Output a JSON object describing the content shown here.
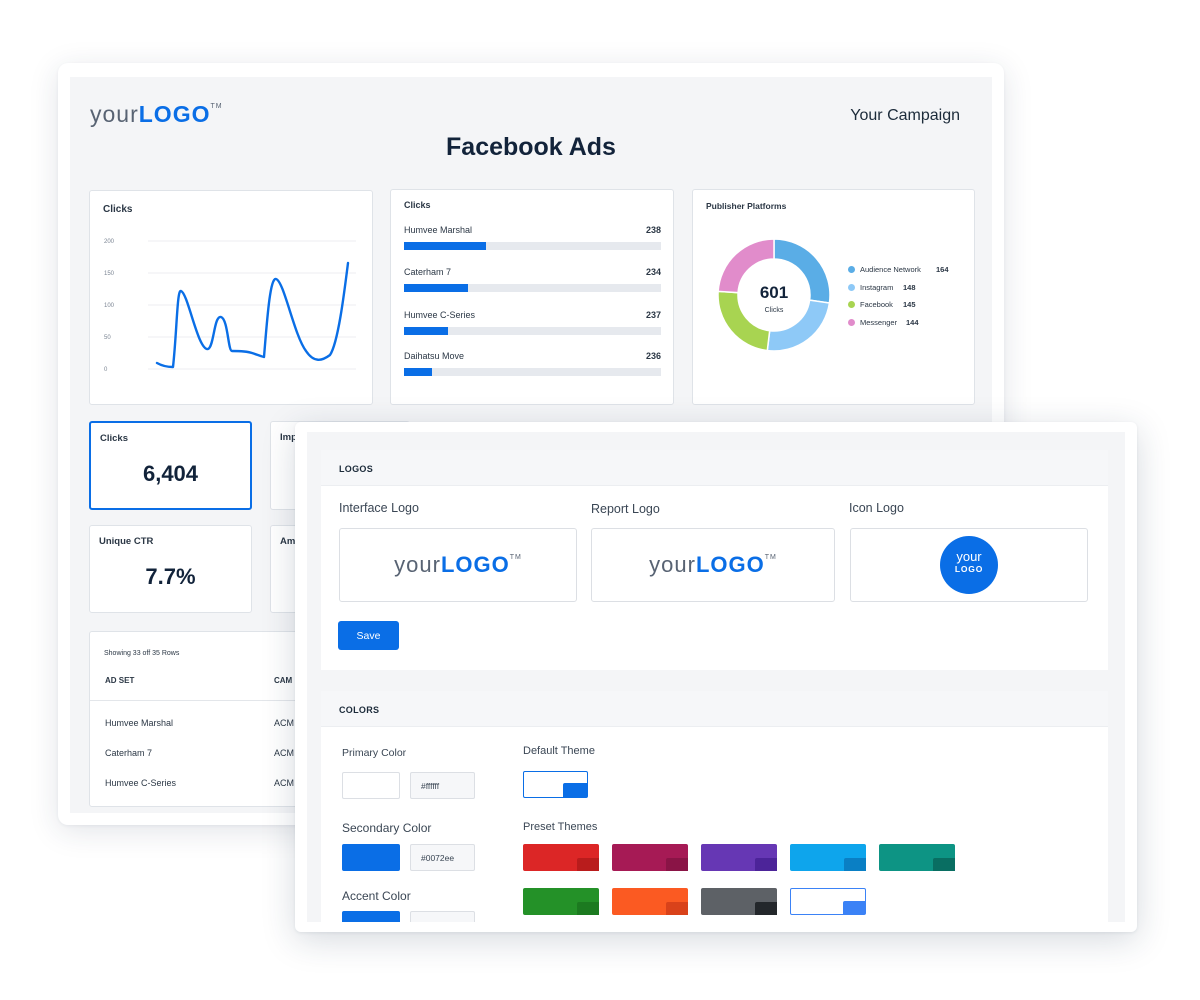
{
  "report": {
    "logo": {
      "light": "your",
      "bold": "LOGO",
      "tm": "TM"
    },
    "campaign": "Your Campaign",
    "title": "Facebook Ads",
    "line_chart": {
      "title": "Clicks",
      "y_ticks": [
        "200",
        "150",
        "100",
        "50",
        "0"
      ],
      "color": "#0a6ee6"
    },
    "bar_list": {
      "title": "Clicks",
      "items": [
        {
          "label": "Humvee Marshal",
          "value": "238",
          "fill": 0.32
        },
        {
          "label": "Caterham 7",
          "value": "234",
          "fill": 0.25
        },
        {
          "label": "Humvee C-Series",
          "value": "237",
          "fill": 0.17
        },
        {
          "label": "Daihatsu Move",
          "value": "236",
          "fill": 0.11
        }
      ]
    },
    "donut": {
      "title": "Publisher Platforms",
      "total": "601",
      "total_label": "Clicks",
      "segments": [
        {
          "name": "Audience Network",
          "value": 164,
          "color": "#5aade6"
        },
        {
          "name": "Instagram",
          "value": 148,
          "color": "#8ec9f7"
        },
        {
          "name": "Facebook",
          "value": 145,
          "color": "#a8d451"
        },
        {
          "name": "Messenger",
          "value": 144,
          "color": "#e18ccb"
        }
      ]
    },
    "kpis": {
      "clicks": {
        "label": "Clicks",
        "value": "6,404"
      },
      "impressions": {
        "label": "Imp"
      },
      "unique_ctr": {
        "label": "Unique CTR",
        "value": "7.7%"
      },
      "amount": {
        "label": "Am"
      }
    },
    "table": {
      "note": "Showing 33 off 35 Rows",
      "headers": [
        "AD SET",
        "CAM"
      ],
      "rows": [
        [
          "Humvee Marshal",
          "ACM"
        ],
        [
          "Caterham 7",
          "ACM"
        ],
        [
          "Humvee C-Series",
          "ACM"
        ]
      ]
    }
  },
  "settings": {
    "logos": {
      "title": "LOGOS",
      "interface_label": "Interface Logo",
      "report_label": "Report Logo",
      "icon_label": "Icon Logo",
      "icon_line1": "your",
      "icon_line2": "LOGO",
      "save": "Save"
    },
    "colors": {
      "title": "COLORS",
      "primary_label": "Primary Color",
      "primary_value": "#ffffff",
      "secondary_label": "Secondary Color",
      "secondary_value": "#0072ee",
      "accent_label": "Accent Color",
      "default_theme_label": "Default Theme",
      "preset_label": "Preset Themes",
      "preset_themes": [
        {
          "main": "#dc2626",
          "corner": "#b91c1c"
        },
        {
          "main": "#a61a55",
          "corner": "#8a1446"
        },
        {
          "main": "#6637b4",
          "corner": "#4c2499"
        },
        {
          "main": "#0ea5ec",
          "corner": "#0a7fc4"
        },
        {
          "main": "#0d9484",
          "corner": "#096e62"
        },
        {
          "main": "#249128",
          "corner": "#1c7a20"
        },
        {
          "main": "#fb5a22",
          "corner": "#d9421a"
        },
        {
          "main": "#5d6166",
          "corner": "#23272b"
        },
        {
          "main": "#ffffff",
          "corner": "#3b82f6"
        }
      ]
    }
  }
}
